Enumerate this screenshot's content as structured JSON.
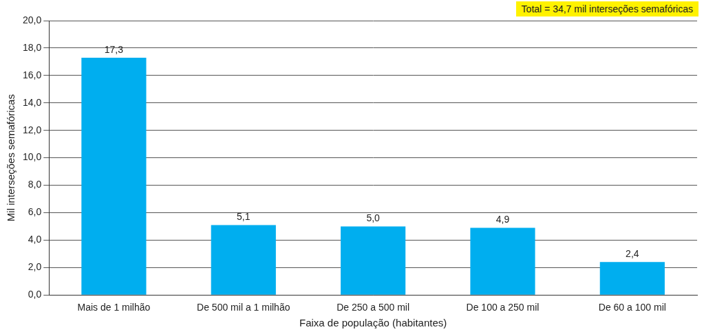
{
  "chart_data": {
    "type": "bar",
    "categories": [
      "Mais de 1 milhão",
      "De 500 mil a 1 milhão",
      "De 250 a 500 mil",
      "De 100 a 250 mil",
      "De 60 a 100 mil"
    ],
    "values": [
      17.3,
      5.1,
      5.0,
      4.9,
      2.4
    ],
    "value_labels": [
      "17,3",
      "5,1",
      "5,0",
      "4,9",
      "2,4"
    ],
    "data_labels": true,
    "color": "#00aeef",
    "x_label": "Faixa de população (habitantes)",
    "y_label": "Mil interseções semafóricas",
    "annotation": "Total = 34,7 mil interseções semafóricas",
    "ylim": [
      0,
      20
    ],
    "yticks": [
      {
        "value": 0,
        "label": "0,0"
      },
      {
        "value": 2,
        "label": "2,0"
      },
      {
        "value": 4,
        "label": "4,0"
      },
      {
        "value": 6,
        "label": "6,0"
      },
      {
        "value": 8,
        "label": "8,0"
      },
      {
        "value": 10,
        "label": "10,0"
      },
      {
        "value": 12,
        "label": "12,0"
      },
      {
        "value": 14,
        "label": "14,0"
      },
      {
        "value": 16,
        "label": "16,0"
      },
      {
        "value": 18,
        "label": "18,0"
      },
      {
        "value": 20,
        "label": "20,0"
      }
    ],
    "grid": true
  }
}
